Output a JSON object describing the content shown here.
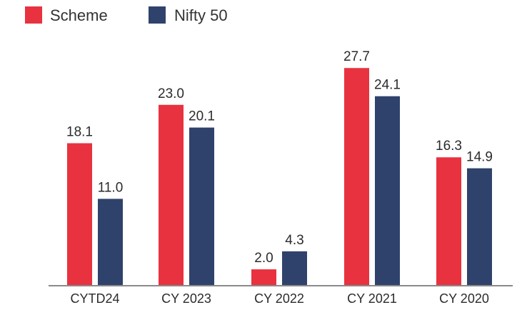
{
  "chart_data": {
    "type": "bar",
    "categories": [
      "CYTD24",
      "CY 2023",
      "CY 2022",
      "CY 2021",
      "CY 2020"
    ],
    "series": [
      {
        "name": "Scheme",
        "color": "#e8323f",
        "values": [
          18.1,
          23.0,
          2.0,
          27.7,
          16.3
        ],
        "labels": [
          "18.1",
          "23.0",
          "2.0",
          "27.7",
          "16.3"
        ]
      },
      {
        "name": "Nifty 50",
        "color": "#2f426b",
        "values": [
          11.0,
          20.1,
          4.3,
          24.1,
          14.9
        ],
        "labels": [
          "11.0",
          "20.1",
          "4.3",
          "24.1",
          "14.9"
        ]
      }
    ],
    "ylim": [
      0,
      30
    ],
    "grid": false,
    "legend_position": "top-left",
    "axis_color": "#8a8a8a"
  }
}
